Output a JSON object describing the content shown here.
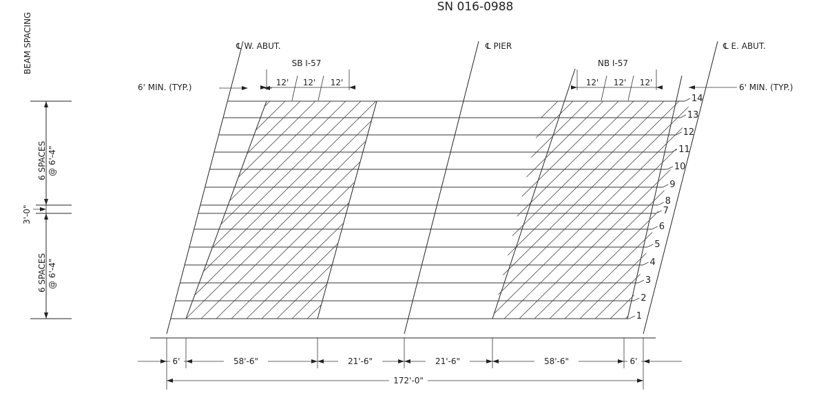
{
  "title": "SN 016-0988",
  "left_column": {
    "heading": "BEAM SPACING",
    "upper_group": {
      "line1": "6 SPACES",
      "line2": "@ 6'-4\""
    },
    "gap": "3'-0\"",
    "lower_group": {
      "line1": "6 SPACES",
      "line2": "@ 6'-4\""
    }
  },
  "supports": {
    "west": "℄ W. ABUT.",
    "pier": "℄ PIER",
    "east": "℄ E. ABUT."
  },
  "roadways": {
    "southbound": {
      "name": "SB I-57",
      "lanes": [
        "12'",
        "12'",
        "12'"
      ]
    },
    "northbound": {
      "name": "NB I-57",
      "lanes": [
        "12'",
        "12'",
        "12'"
      ]
    }
  },
  "min_clearance": {
    "left": "6' MIN. (TYP.)",
    "right": "6' MIN. (TYP.)"
  },
  "beams": [
    "1",
    "2",
    "3",
    "4",
    "5",
    "6",
    "7",
    "8",
    "9",
    "10",
    "11",
    "12",
    "13",
    "14"
  ],
  "bottom_dimensions": {
    "segments": [
      "6'",
      "58'-6\"",
      "21'-6\"",
      "21'-6\"",
      "58'-6\"",
      "6'"
    ],
    "total": "172'-0\""
  }
}
